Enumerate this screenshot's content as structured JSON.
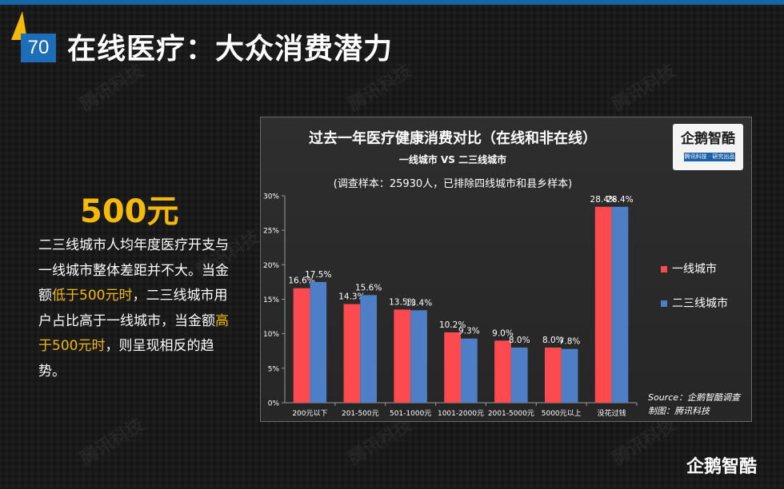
{
  "slide": {
    "page_number": "70",
    "title": "在线医疗：大众消费潜力"
  },
  "watermark_text": "腾讯科技",
  "left_panel": {
    "highlight_value": "500元",
    "desc_parts": [
      {
        "text": "二三线城市人均年度医疗开支与一线城市整体差距并不大。当金额",
        "hl": false
      },
      {
        "text": "低于500元时",
        "hl": true
      },
      {
        "text": "，二三线城市用户占比高于一线城市，当金额",
        "hl": false
      },
      {
        "text": "高于500元时",
        "hl": true
      },
      {
        "text": "，则呈现相反的趋势。",
        "hl": false
      }
    ]
  },
  "chart_header": {
    "title": "过去一年医疗健康消费对比（在线和非在线）",
    "subtitle": "一线城市 VS 二三线城市",
    "note": "(调查样本：25930人，已排除四线城市和县乡样本)"
  },
  "logo": {
    "name": "企鹅智酷",
    "tagline": "腾讯科技 · 研究出品"
  },
  "source": "Source：企鹅智酷调查",
  "maker": "制图：腾讯科技",
  "brand_logo": "企鹅智酷",
  "colors": {
    "accent_yellow": "#f5b90a",
    "page_num_blue": "#1e6db8",
    "series_red": "#fc4a4f",
    "series_blue": "#4d7ec6"
  },
  "chart_data": {
    "type": "bar",
    "title": "过去一年医疗健康消费对比（在线和非在线）",
    "categories": [
      "200元以下",
      "201-500元",
      "501-1000元",
      "1001-2000元",
      "2001-5000元",
      "5000元以上",
      "没花过钱"
    ],
    "series": [
      {
        "name": "一线城市",
        "values": [
          16.6,
          14.3,
          13.5,
          10.2,
          9.0,
          8.0,
          28.4
        ],
        "color": "#fc4a4f"
      },
      {
        "name": "二三线城市",
        "values": [
          17.5,
          15.6,
          13.4,
          9.3,
          8.0,
          7.8,
          28.4
        ],
        "color": "#4d7ec6"
      }
    ],
    "ylim": [
      0,
      30
    ],
    "yticks": [
      "0%",
      "5%",
      "10%",
      "15%",
      "20%",
      "25%",
      "30%"
    ],
    "value_suffix": "%",
    "legend_position": "right",
    "grid": false
  }
}
